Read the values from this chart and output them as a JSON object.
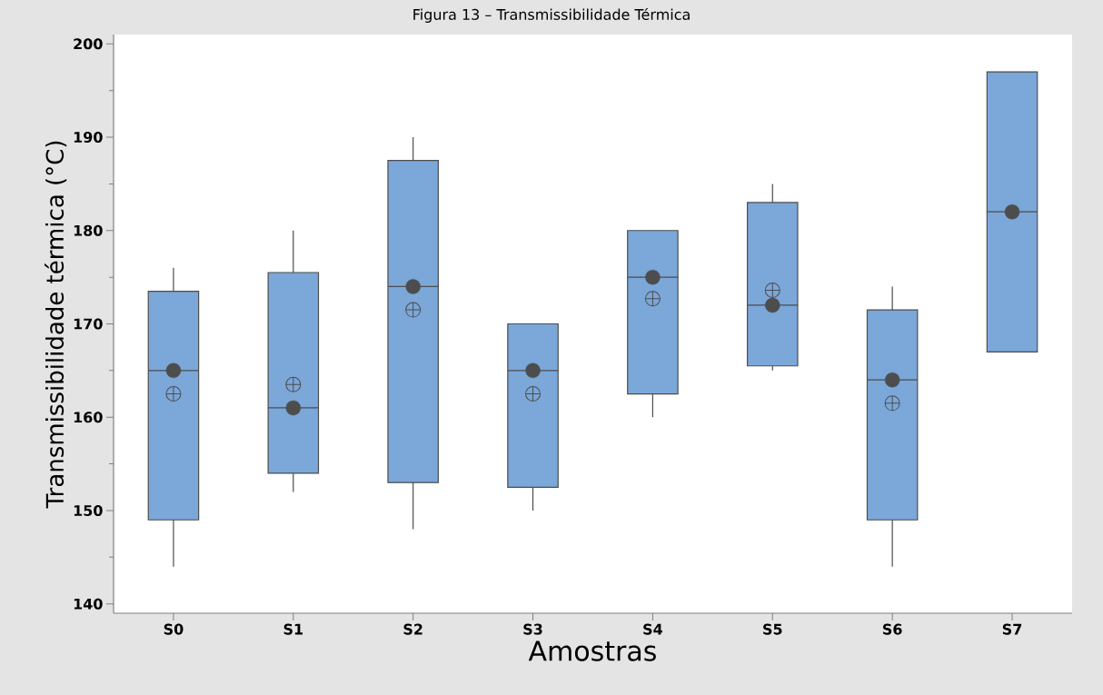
{
  "chart_data": {
    "type": "box",
    "title": "Figura 13 – Transmissibilidade Térmica",
    "xlabel": "Amostras",
    "ylabel": "Transmissibilidade térmica (°C)",
    "categories": [
      "S0",
      "S1",
      "S2",
      "S3",
      "S4",
      "S5",
      "S6",
      "S7"
    ],
    "series": [
      {
        "color": "#7ba7d9",
        "boxes": [
          {
            "low": 144,
            "q1": 149,
            "median": 165,
            "q3": 173.5,
            "high": 176,
            "mean": 162.5
          },
          {
            "low": 152,
            "q1": 154,
            "median": 161,
            "q3": 175.5,
            "high": 180,
            "mean": 163.5
          },
          {
            "low": 148,
            "q1": 153,
            "median": 174,
            "q3": 187.5,
            "high": 190,
            "mean": 171.5
          },
          {
            "low": 150,
            "q1": 152.5,
            "median": 165,
            "q3": 170,
            "high": 170,
            "mean": 162.5
          },
          {
            "low": 160,
            "q1": 162.5,
            "median": 175,
            "q3": 180,
            "high": 180,
            "mean": 172.7
          },
          {
            "low": 165,
            "q1": 165.5,
            "median": 172,
            "q3": 183,
            "high": 185,
            "mean": 173.6
          },
          {
            "low": 144,
            "q1": 149,
            "median": 164,
            "q3": 171.5,
            "high": 174,
            "mean": 161.5
          },
          {
            "low": 167,
            "q1": 167,
            "median": 182,
            "q3": 197,
            "high": 197
          }
        ]
      },
      {
        "type": "scatter",
        "color": "#4d4d4d",
        "marker": "circle",
        "x": [
          "S0",
          "S1",
          "S2",
          "S3",
          "S4",
          "S5",
          "S6",
          "S7"
        ],
        "values": [
          165,
          161,
          174,
          165,
          175,
          172,
          164,
          182
        ]
      }
    ],
    "ylim": [
      139,
      201
    ],
    "yticks": [
      140,
      {
        "value": 145,
        "label": null
      },
      150,
      {
        "value": 155,
        "label": null
      },
      160,
      {
        "value": 165,
        "label": null
      },
      170,
      {
        "value": 175,
        "label": null
      },
      180,
      {
        "value": 185,
        "label": null
      },
      190,
      {
        "value": 195,
        "label": null
      },
      200
    ]
  }
}
